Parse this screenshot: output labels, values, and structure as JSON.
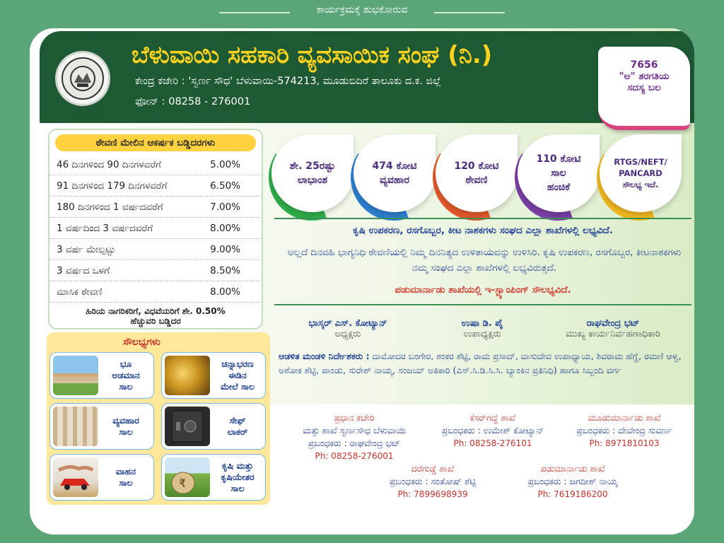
{
  "top_tag": "ಕಾರ್ಯಕ್ರಮಕ್ಕೆ ಶುಭಕೋರುವ",
  "header": {
    "title": "ಬೆಳುವಾಯಿ ಸಹಕಾರಿ ವ್ಯವಸಾಯಿಕ ಸಂಘ (ನಿ.)",
    "address": "ಕೇಂದ್ರ ಕಚೇರಿ : 'ಸ್ವರ್ಣ ಸೌಧ' ಬೆಳುವಾಯಿ-574213, ಮೂಡುಬಿದಿರೆ ತಾಲೂಕು ದ.ಕ. ಜಿಲ್ಲೆ",
    "phone": "ಫೋನ್ : 08258 - 276001"
  },
  "members": {
    "count": "7656",
    "label1": "\"ಅ\" ತರಗತಿಯ",
    "label2": "ಸದಸ್ಯ ಬಲ"
  },
  "rates": {
    "heading": "ಠೇವಣಿ ಮೇಲಿನ ಆಕರ್ಷಕ ಬಡ್ಡಿದರಗಳು",
    "rows": [
      {
        "period": "46 ದಿನಗಳಿಂದ 90 ದಿನಗಳವರೆಗೆ",
        "rate": "5.00%"
      },
      {
        "period": "91 ದಿನಗಳಿಂದ 179 ದಿನಗಳವರೆಗೆ",
        "rate": "6.50%"
      },
      {
        "period": "180 ದಿನಗಳಿಂದ 1 ವರ್ಷದವರೆಗೆ",
        "rate": "7.00%"
      },
      {
        "period": "1 ವರ್ಷದಿಂದ 3 ವರ್ಷದವರೆಗೆ",
        "rate": "8.00%"
      },
      {
        "period": "3 ವರ್ಷ ಮೇಲ್ಪಟ್ಟು",
        "rate": "9.00%"
      },
      {
        "period": "3 ವರ್ಷದ ಒಳಗೆ",
        "rate": "8.50%"
      },
      {
        "period": "ಮಾಸಿಕ ಠೇವಣಿ",
        "rate": "8.00%"
      }
    ],
    "footer1": "ಹಿರಿಯ ನಾಗರಿಕರಿಗೆ, ವಿಧವೆಯರಿಗೆ ಶೇ. 0.50%",
    "footer2": "ಹೆಚ್ಚುವರಿ ಬಡ್ಡಿದರ"
  },
  "facilities": {
    "heading": "ಸೌಲಭ್ಯಗಳು",
    "items": [
      {
        "l1": "ಭೂ",
        "l2": "ಅಡಮಾನ",
        "l3": "ಸಾಲ"
      },
      {
        "l1": "ಚಿನ್ನಾಭರಣ",
        "l2": "ಈಡಿನ",
        "l3": "ಮೇಲೆ ಸಾಲ"
      },
      {
        "l1": "ವ್ಯವಹಾರ",
        "l2": "ಸಾಲ",
        "l3": ""
      },
      {
        "l1": "ಸೇಫ್",
        "l2": "ಲಾಕರ್",
        "l3": ""
      },
      {
        "l1": "ವಾಹನ",
        "l2": "ಸಾಲ",
        "l3": ""
      },
      {
        "l1": "ಕೃಷಿ ಮತ್ತು",
        "l2": "ಕೃಷಿಯೇತರ",
        "l3": "ಸಾಲ"
      }
    ]
  },
  "stats": [
    {
      "l1": "ಶೇ. 25ರಷ್ಟು",
      "l2": "ಲಾಭಾಂಶ",
      "l3": "",
      "color": "#2fae4a"
    },
    {
      "l1": "474 ಕೋಟಿ",
      "l2": "ವ್ಯವಹಾರ",
      "l3": "",
      "color": "#2d7fd0"
    },
    {
      "l1": "120 ಕೋಟಿ",
      "l2": "ಠೇವಣಿ",
      "l3": "",
      "color": "#e2592b"
    },
    {
      "l1": "110 ಕೋಟಿ",
      "l2": "ಸಾಲ",
      "l3": "ಹಂಚಿಕೆ",
      "color": "#7b3fa6"
    },
    {
      "l1": "RTGS/NEFT/",
      "l2": "PANCARD",
      "l3": "ಸೌಲಭ್ಯ ಇದೆ.",
      "color": "#f0b820"
    }
  ],
  "notice": {
    "line1": "ಕೃಷಿ ಉಪಕರಣ, ರಸಗೊಬ್ಬರ, ಕೀಟ ನಾಶಕಗಳು ಸಂಘದ ಎಲ್ಲಾ ಶಾಖೆಗಳಲ್ಲಿ ಲಭ್ಯವಿದೆ.",
    "line2": "ಅಲ್ಲದೆ ದಿನವಹಿ ಭಾಗ್ಯನಿಧಿ ಠೇವಣಿಯಲ್ಲಿ ನಿಮ್ಮ ದಿನನಿತ್ಯದ ಉಳಿತಾಯವನ್ನು ಉಳಿಸಿರಿ. ಕೃಷಿ ಉಪಕರಣ, ರಸಗೊಬ್ಬರ, ಕೀಟನಾಶಕಗಳು ನಮ್ಮ ಸಂಘದ ಎಲ್ಲಾ ಶಾಖೆಗಳಲ್ಲಿ ಲಭ್ಯವಿರುತ್ತದೆ.",
    "line3": "ಪಡುಮಾರ್ನಾಡು ಶಾಖೆಯಲ್ಲಿ ಇ-ಸ್ಟ್ಯಾಂಪಿಂಗ್ ಸೌಲಭ್ಯವಿದೆ."
  },
  "staff": [
    {
      "name": "ಭಾಸ್ಕರ್ ಎಸ್. ಕೋಟ್ಯಾನ್",
      "role": "ಅಧ್ಯಕ್ಷರು"
    },
    {
      "name": "ಉಷಾ ಡಿ. ಪೈ",
      "role": "ಉಪಾಧ್ಯಕ್ಷರು"
    },
    {
      "name": "ರಾಘವೇಂದ್ರ ಭಟ್",
      "role": "ಮುಖ್ಯ ಕಾರ್ಯನಿರ್ವಹಣಾಧಿಕಾರಿ"
    }
  ],
  "directors": {
    "label": "ಆಡಳಿತ ಮಂಡಳಿ ನಿರ್ದೇಶಕರು :",
    "names": "ದಾಮೋದರ ಬಂಗೇರ, ಶಂಕರ ಶೆಟ್ಟಿ, ರಾಮ ಪ್ರಸಾದ್, ವಾಸುದೇವ ಉಪಾಧ್ಯಾಯ, ಶಿವರಾಮ ಹೆಗ್ಡೆ, ರಮಣಿ ಆಳ್ವ, ಅಶೋಕ ಶೆಟ್ಟಿ, ಪಾಂಡು, ಸುರೇಶ್ ನಾಯ್ಕ, ಸಂಜಯ್ ಅತಿಕಾರಿ (ಎಸ್.ಸಿ.ಡಿ.ಸಿ.ಸಿ. ಬ್ಯಾಂಕಿನ ಪ್ರತಿನಿಧಿ) ಹಾಗೂ ಸಿಬ್ಬಂದಿ ವರ್ಗ"
  },
  "branches": [
    {
      "name": "ಪ್ರಧಾನ ಕಚೇರಿ",
      "line": "ಮತ್ತು ಶಾಖೆ ಸ್ವರ್ಣಸೌಧ ಬೆಳುವಾಯಿ",
      "manager": "ಪ್ರಬಂಧಕರು : ರಾಘವೇಂದ್ರ ಭಟ್",
      "phone": "Ph: 08258-276001"
    },
    {
      "name": "ಕೆಸರ್‌ಗದ್ದೆ ಶಾಖೆ",
      "line": "",
      "manager": "ಪ್ರಬಂಧಕರು : ಉಮೇಶ್ ಕೋಟ್ಯಾನ್",
      "phone": "Ph: 08258-276101"
    },
    {
      "name": "ಮೂಡುಮಾರ್ನಾಡು ಶಾಖೆ",
      "line": "",
      "manager": "ಪ್ರಬಂಧಕರು : ದೇವೇಂದ್ರ ಸುವರ್ಣ",
      "phone": "Ph: 8971810103"
    },
    {
      "name": "ದರೆಗುಡ್ಡೆ ಶಾಖೆ",
      "line": "",
      "manager": "ಪ್ರಬಂಧಕರು : ಸಂತೋಷ್ ಶೆಟ್ಟಿ",
      "phone": "Ph: 7899698939"
    },
    {
      "name": "ಪಡುಮಾರ್ನಾಡು ಶಾಖೆ",
      "line": "",
      "manager": "ಪ್ರಬಂಧಕರು : ಜಗದೀಶ್ ನಾಯ್ಕ",
      "phone": "Ph: 7619186200"
    }
  ]
}
